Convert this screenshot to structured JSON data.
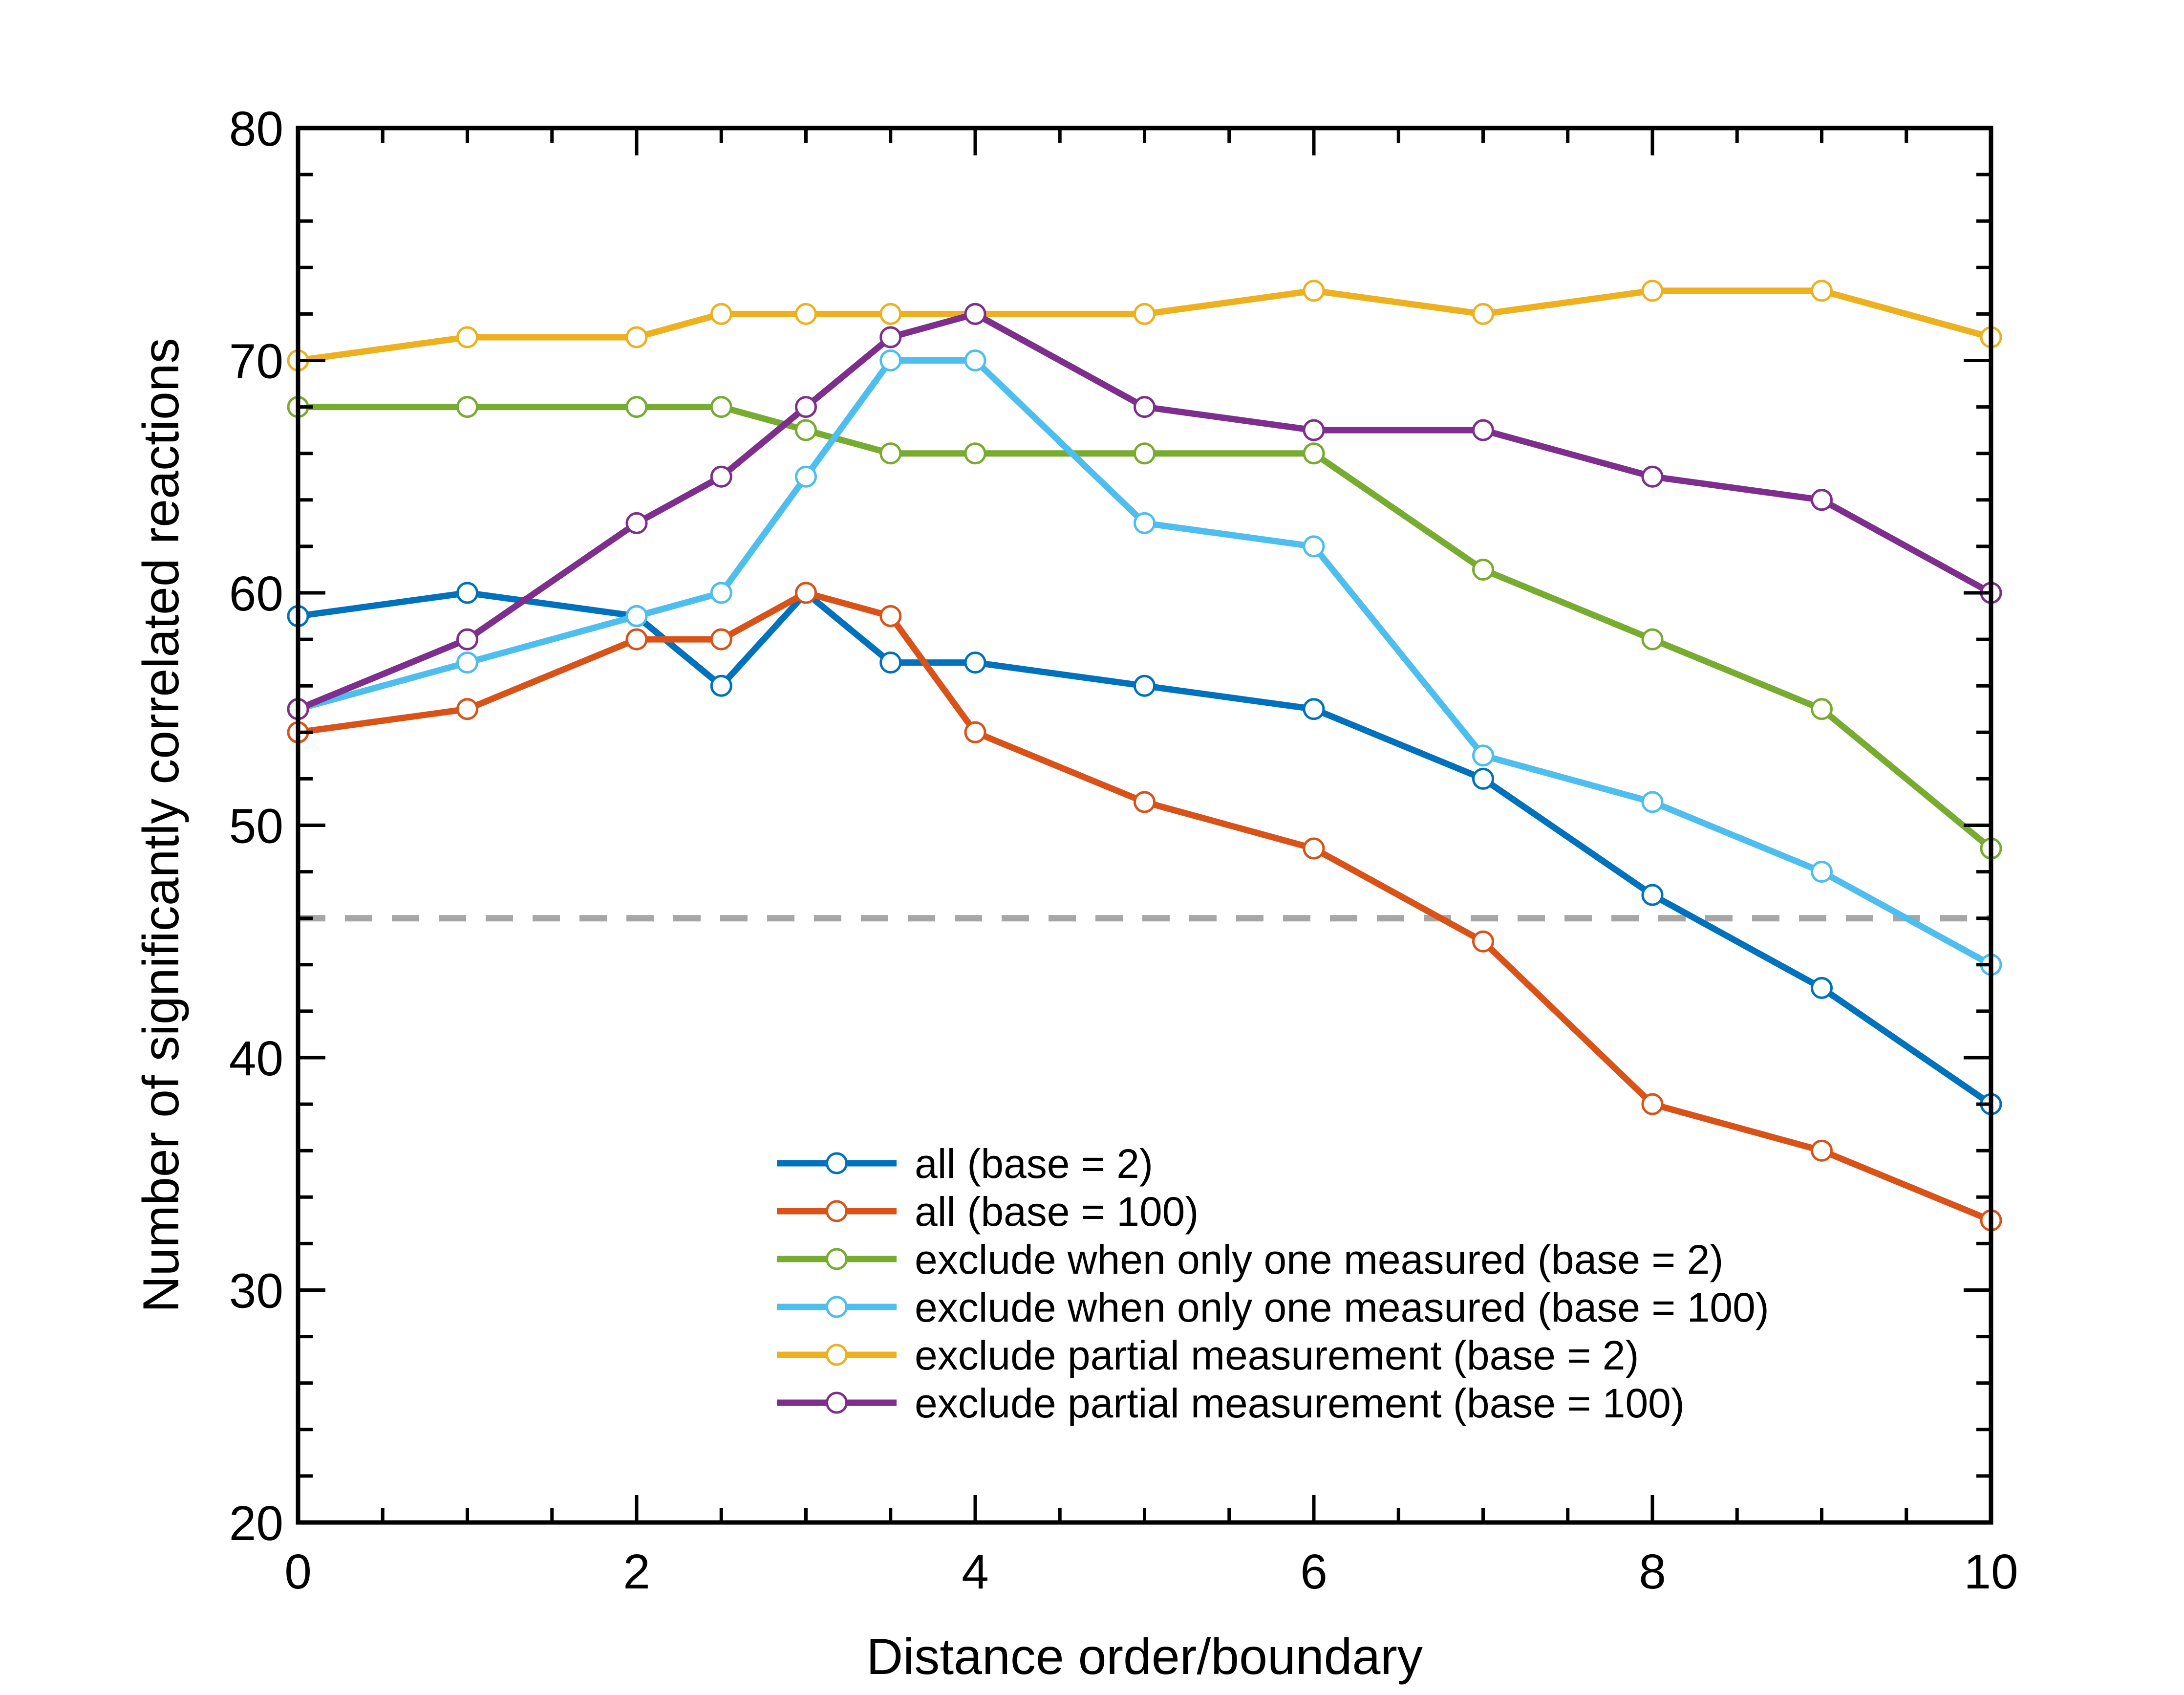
{
  "chart_data": {
    "type": "line",
    "title": "",
    "xlabel": "Distance order/boundary",
    "ylabel": "Number of significantly correlated reactions",
    "xlim": [
      0,
      10
    ],
    "ylim": [
      20,
      80
    ],
    "x_ticks": [
      "0",
      "2",
      "4",
      "6",
      "8",
      "10"
    ],
    "y_ticks": [
      "20",
      "30",
      "40",
      "50",
      "60",
      "70",
      "80"
    ],
    "grid": false,
    "legend_position": "bottom-right",
    "x": [
      0,
      1,
      2,
      2.5,
      3,
      3.5,
      4,
      5,
      6,
      7,
      8,
      9,
      10
    ],
    "reference_line": {
      "y": 46,
      "color": "#A6A6A6",
      "style": "dashed"
    },
    "series": [
      {
        "name": "all (base = 2)",
        "color": "#0072BD",
        "values": [
          59,
          60,
          59,
          56,
          60,
          57,
          57,
          56,
          55,
          52,
          47,
          43,
          38
        ]
      },
      {
        "name": "all (base = 100)",
        "color": "#D95319",
        "values": [
          54,
          55,
          58,
          58,
          60,
          59,
          54,
          51,
          49,
          45,
          38,
          36,
          33
        ]
      },
      {
        "name": "exclude when only one measured (base = 2)",
        "color": "#77AC30",
        "values": [
          68,
          68,
          68,
          68,
          67,
          66,
          66,
          66,
          66,
          61,
          58,
          55,
          49
        ]
      },
      {
        "name": "exclude when only one measured (base = 100)",
        "color": "#4DBEEE",
        "values": [
          55,
          57,
          59,
          60,
          65,
          70,
          70,
          63,
          62,
          53,
          51,
          48,
          44
        ]
      },
      {
        "name": "exclude partial measurement (base = 2)",
        "color": "#EDB120",
        "values": [
          70,
          71,
          71,
          72,
          72,
          72,
          72,
          72,
          73,
          72,
          73,
          73,
          71
        ]
      },
      {
        "name": "exclude partial measurement (base = 100)",
        "color": "#7E2F8E",
        "values": [
          55,
          58,
          63,
          65,
          68,
          71,
          72,
          68,
          67,
          67,
          65,
          64,
          60
        ]
      }
    ]
  }
}
